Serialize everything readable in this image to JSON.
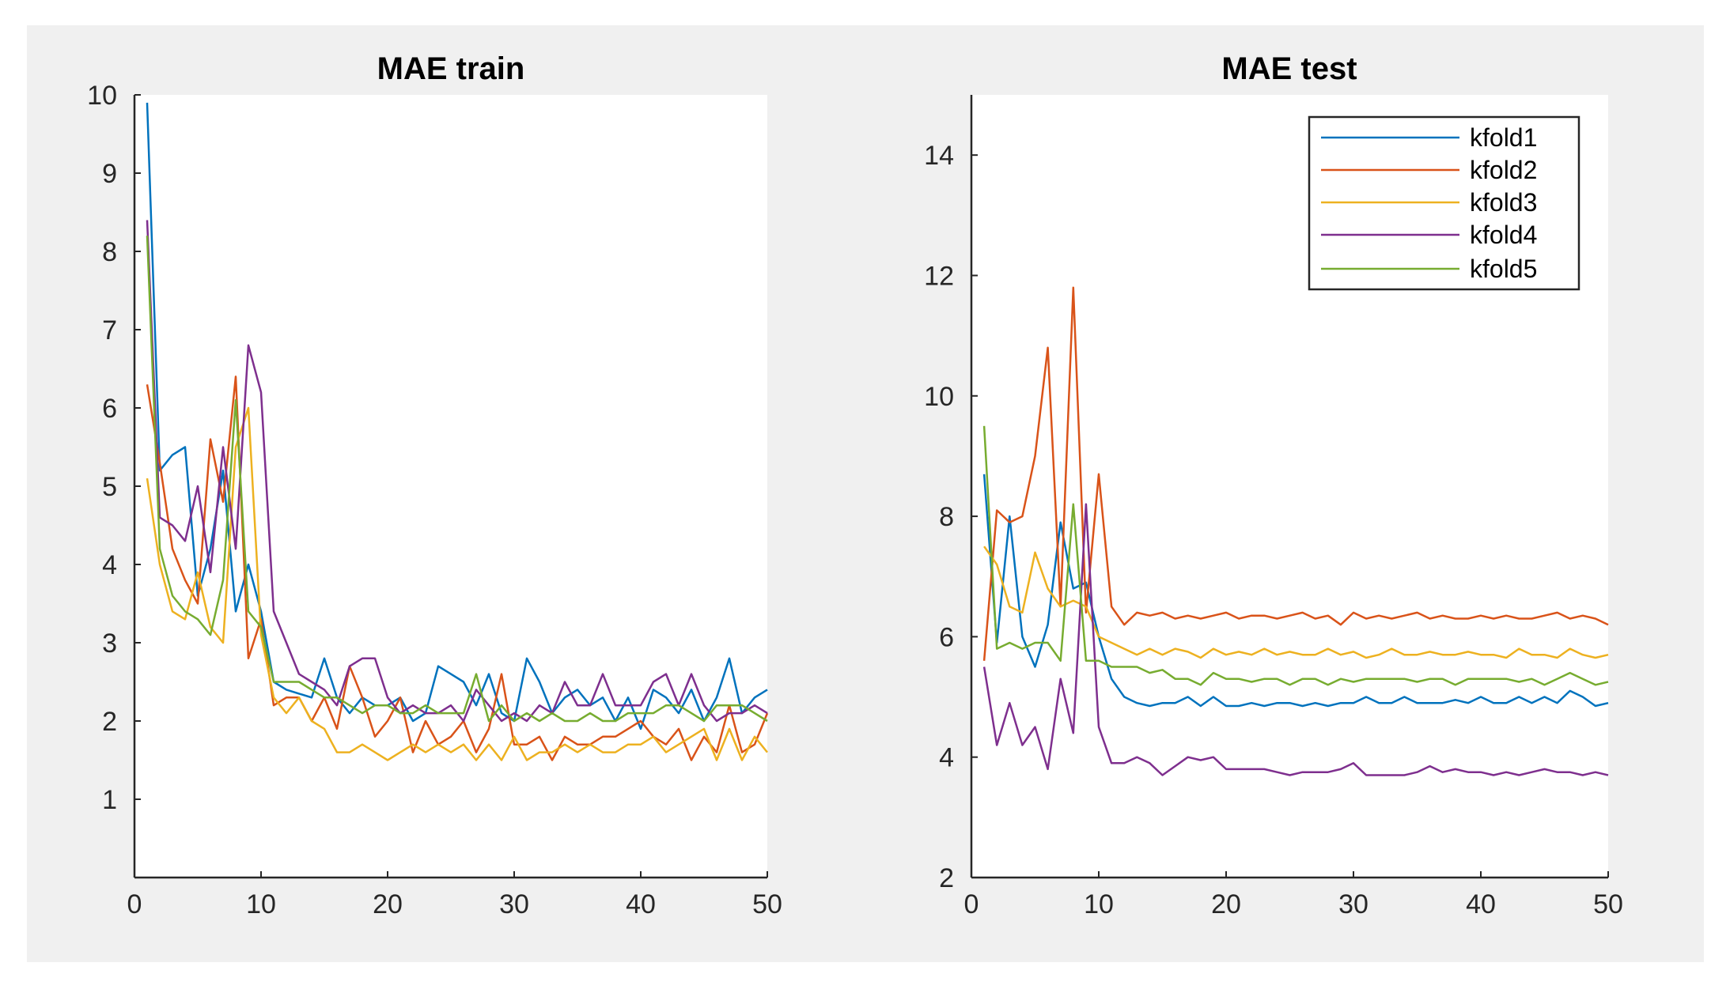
{
  "colors": {
    "figure_bg": "#f0f0f0",
    "axes_bg": "#ffffff",
    "axis_line": "#262626",
    "kfold1": "#0072bd",
    "kfold2": "#d95319",
    "kfold3": "#edb120",
    "kfold4": "#7e2f8e",
    "kfold5": "#77ac30"
  },
  "chart_data": [
    {
      "type": "line",
      "title": "MAE train",
      "xlabel": "",
      "ylabel": "",
      "xlim": [
        0,
        50
      ],
      "ylim": [
        0,
        10
      ],
      "xticks": [
        0,
        10,
        20,
        30,
        40,
        50
      ],
      "xtick_labels": [
        "0",
        "10",
        "20",
        "30",
        "40",
        "50"
      ],
      "yticks": [
        1,
        2,
        3,
        4,
        5,
        6,
        7,
        8,
        9,
        10
      ],
      "ytick_labels": [
        "1",
        "2",
        "3",
        "4",
        "5",
        "6",
        "7",
        "8",
        "9",
        "10"
      ],
      "grid": false,
      "x": [
        1,
        2,
        3,
        4,
        5,
        6,
        7,
        8,
        9,
        10,
        11,
        12,
        13,
        14,
        15,
        16,
        17,
        18,
        19,
        20,
        21,
        22,
        23,
        24,
        25,
        26,
        27,
        28,
        29,
        30,
        31,
        32,
        33,
        34,
        35,
        36,
        37,
        38,
        39,
        40,
        41,
        42,
        43,
        44,
        45,
        46,
        47,
        48,
        49,
        50
      ],
      "series": [
        {
          "color_key": "kfold1",
          "values": [
            9.9,
            5.2,
            5.4,
            5.5,
            3.6,
            4.2,
            5.2,
            3.4,
            4.0,
            3.4,
            2.5,
            2.4,
            2.35,
            2.3,
            2.8,
            2.3,
            2.1,
            2.3,
            2.2,
            2.2,
            2.3,
            2.0,
            2.1,
            2.7,
            2.6,
            2.5,
            2.2,
            2.6,
            2.1,
            2.0,
            2.8,
            2.5,
            2.1,
            2.3,
            2.4,
            2.2,
            2.3,
            2.0,
            2.3,
            1.9,
            2.4,
            2.3,
            2.1,
            2.4,
            2.0,
            2.3,
            2.8,
            2.1,
            2.3,
            2.4
          ]
        },
        {
          "color_key": "kfold2",
          "values": [
            6.3,
            5.3,
            4.2,
            3.8,
            3.5,
            5.6,
            4.8,
            6.4,
            2.8,
            3.3,
            2.2,
            2.3,
            2.3,
            2.0,
            2.3,
            1.9,
            2.7,
            2.3,
            1.8,
            2.0,
            2.3,
            1.6,
            2.0,
            1.7,
            1.8,
            2.0,
            1.6,
            1.9,
            2.6,
            1.7,
            1.7,
            1.8,
            1.5,
            1.8,
            1.7,
            1.7,
            1.8,
            1.8,
            1.9,
            2.0,
            1.8,
            1.7,
            1.9,
            1.5,
            1.8,
            1.6,
            2.2,
            1.6,
            1.7,
            2.1
          ]
        },
        {
          "color_key": "kfold3",
          "values": [
            5.1,
            4.0,
            3.4,
            3.3,
            3.9,
            3.2,
            3.0,
            5.5,
            6.0,
            3.1,
            2.3,
            2.1,
            2.3,
            2.0,
            1.9,
            1.6,
            1.6,
            1.7,
            1.6,
            1.5,
            1.6,
            1.7,
            1.6,
            1.7,
            1.6,
            1.7,
            1.5,
            1.7,
            1.5,
            1.8,
            1.5,
            1.6,
            1.6,
            1.7,
            1.6,
            1.7,
            1.6,
            1.6,
            1.7,
            1.7,
            1.8,
            1.6,
            1.7,
            1.8,
            1.9,
            1.5,
            1.9,
            1.5,
            1.8,
            1.6
          ]
        },
        {
          "color_key": "kfold4",
          "values": [
            8.4,
            4.6,
            4.5,
            4.3,
            5.0,
            3.9,
            5.5,
            4.2,
            6.8,
            6.2,
            3.4,
            3.0,
            2.6,
            2.5,
            2.4,
            2.2,
            2.7,
            2.8,
            2.8,
            2.3,
            2.1,
            2.2,
            2.1,
            2.1,
            2.2,
            2.0,
            2.4,
            2.2,
            2.0,
            2.1,
            2.0,
            2.2,
            2.1,
            2.5,
            2.2,
            2.2,
            2.6,
            2.2,
            2.2,
            2.2,
            2.5,
            2.6,
            2.2,
            2.6,
            2.2,
            2.0,
            2.1,
            2.1,
            2.2,
            2.1
          ]
        },
        {
          "color_key": "kfold5",
          "values": [
            8.2,
            4.2,
            3.6,
            3.4,
            3.3,
            3.1,
            3.8,
            6.1,
            3.4,
            3.2,
            2.5,
            2.5,
            2.5,
            2.4,
            2.3,
            2.3,
            2.2,
            2.1,
            2.2,
            2.2,
            2.1,
            2.1,
            2.2,
            2.1,
            2.1,
            2.1,
            2.6,
            2.0,
            2.2,
            2.0,
            2.1,
            2.0,
            2.1,
            2.0,
            2.0,
            2.1,
            2.0,
            2.0,
            2.1,
            2.1,
            2.1,
            2.2,
            2.2,
            2.1,
            2.0,
            2.2,
            2.2,
            2.2,
            2.1,
            2.0
          ]
        }
      ]
    },
    {
      "type": "line",
      "title": "MAE test",
      "xlabel": "",
      "ylabel": "",
      "xlim": [
        0,
        50
      ],
      "ylim": [
        2,
        15
      ],
      "xticks": [
        0,
        10,
        20,
        30,
        40,
        50
      ],
      "xtick_labels": [
        "0",
        "10",
        "20",
        "30",
        "40",
        "50"
      ],
      "yticks": [
        2,
        4,
        6,
        8,
        10,
        12,
        14
      ],
      "ytick_labels": [
        "2",
        "4",
        "6",
        "8",
        "10",
        "12",
        "14"
      ],
      "grid": false,
      "legend": {
        "location": "top-right",
        "entries": [
          "kfold1",
          "kfold2",
          "kfold3",
          "kfold4",
          "kfold5"
        ]
      },
      "x": [
        1,
        2,
        3,
        4,
        5,
        6,
        7,
        8,
        9,
        10,
        11,
        12,
        13,
        14,
        15,
        16,
        17,
        18,
        19,
        20,
        21,
        22,
        23,
        24,
        25,
        26,
        27,
        28,
        29,
        30,
        31,
        32,
        33,
        34,
        35,
        36,
        37,
        38,
        39,
        40,
        41,
        42,
        43,
        44,
        45,
        46,
        47,
        48,
        49,
        50
      ],
      "series": [
        {
          "name": "kfold1",
          "color_key": "kfold1",
          "values": [
            8.7,
            5.9,
            8.0,
            6.0,
            5.5,
            6.2,
            7.9,
            6.8,
            6.9,
            6.0,
            5.3,
            5.0,
            4.9,
            4.85,
            4.9,
            4.9,
            5.0,
            4.85,
            5.0,
            4.85,
            4.85,
            4.9,
            4.85,
            4.9,
            4.9,
            4.85,
            4.9,
            4.85,
            4.9,
            4.9,
            5.0,
            4.9,
            4.9,
            5.0,
            4.9,
            4.9,
            4.9,
            4.95,
            4.9,
            5.0,
            4.9,
            4.9,
            5.0,
            4.9,
            5.0,
            4.9,
            5.1,
            5.0,
            4.85,
            4.9
          ]
        },
        {
          "name": "kfold2",
          "color_key": "kfold2",
          "values": [
            5.6,
            8.1,
            7.9,
            8.0,
            9.0,
            10.8,
            6.5,
            11.8,
            6.4,
            8.7,
            6.5,
            6.2,
            6.4,
            6.35,
            6.4,
            6.3,
            6.35,
            6.3,
            6.35,
            6.4,
            6.3,
            6.35,
            6.35,
            6.3,
            6.35,
            6.4,
            6.3,
            6.35,
            6.2,
            6.4,
            6.3,
            6.35,
            6.3,
            6.35,
            6.4,
            6.3,
            6.35,
            6.3,
            6.3,
            6.35,
            6.3,
            6.35,
            6.3,
            6.3,
            6.35,
            6.4,
            6.3,
            6.35,
            6.3,
            6.2
          ]
        },
        {
          "name": "kfold3",
          "color_key": "kfold3",
          "values": [
            7.5,
            7.2,
            6.5,
            6.4,
            7.4,
            6.8,
            6.5,
            6.6,
            6.5,
            6.0,
            5.9,
            5.8,
            5.7,
            5.8,
            5.7,
            5.8,
            5.75,
            5.65,
            5.8,
            5.7,
            5.75,
            5.7,
            5.8,
            5.7,
            5.75,
            5.7,
            5.7,
            5.8,
            5.7,
            5.75,
            5.65,
            5.7,
            5.8,
            5.7,
            5.7,
            5.75,
            5.7,
            5.7,
            5.75,
            5.7,
            5.7,
            5.65,
            5.8,
            5.7,
            5.7,
            5.65,
            5.8,
            5.7,
            5.65,
            5.7
          ]
        },
        {
          "name": "kfold4",
          "color_key": "kfold4",
          "values": [
            5.5,
            4.2,
            4.9,
            4.2,
            4.5,
            3.8,
            5.3,
            4.4,
            8.2,
            4.5,
            3.9,
            3.9,
            4.0,
            3.9,
            3.7,
            3.85,
            4.0,
            3.95,
            4.0,
            3.8,
            3.8,
            3.8,
            3.8,
            3.75,
            3.7,
            3.75,
            3.75,
            3.75,
            3.8,
            3.9,
            3.7,
            3.7,
            3.7,
            3.7,
            3.75,
            3.85,
            3.75,
            3.8,
            3.75,
            3.75,
            3.7,
            3.75,
            3.7,
            3.75,
            3.8,
            3.75,
            3.75,
            3.7,
            3.75,
            3.7
          ]
        },
        {
          "name": "kfold5",
          "color_key": "kfold5",
          "values": [
            9.5,
            5.8,
            5.9,
            5.8,
            5.9,
            5.9,
            5.6,
            8.2,
            5.6,
            5.6,
            5.5,
            5.5,
            5.5,
            5.4,
            5.45,
            5.3,
            5.3,
            5.2,
            5.4,
            5.3,
            5.3,
            5.25,
            5.3,
            5.3,
            5.2,
            5.3,
            5.3,
            5.2,
            5.3,
            5.25,
            5.3,
            5.3,
            5.3,
            5.3,
            5.25,
            5.3,
            5.3,
            5.2,
            5.3,
            5.3,
            5.3,
            5.3,
            5.25,
            5.3,
            5.2,
            5.3,
            5.4,
            5.3,
            5.2,
            5.25
          ]
        }
      ]
    }
  ]
}
